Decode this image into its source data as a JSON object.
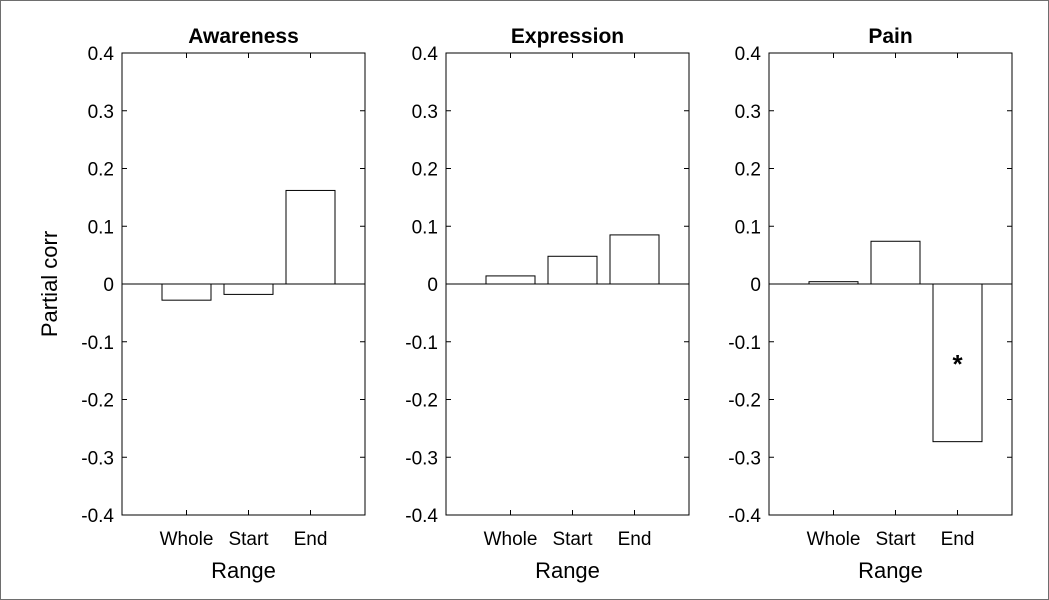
{
  "chart_data": [
    {
      "type": "bar",
      "title": "Awareness",
      "xlabel": "Range",
      "ylabel": "Partial corr",
      "categories": [
        "Whole",
        "Start",
        "End"
      ],
      "values": [
        -0.028,
        -0.018,
        0.162
      ],
      "ylim": [
        -0.4,
        0.4
      ],
      "yticks": [
        "0.4",
        "0.3",
        "0.2",
        "0.1",
        "0",
        "-0.1",
        "-0.2",
        "-0.3",
        "-0.4"
      ],
      "annotations": []
    },
    {
      "type": "bar",
      "title": "Expression",
      "xlabel": "Range",
      "ylabel": "",
      "categories": [
        "Whole",
        "Start",
        "End"
      ],
      "values": [
        0.014,
        0.048,
        0.085
      ],
      "ylim": [
        -0.4,
        0.4
      ],
      "yticks": [
        "0.4",
        "0.3",
        "0.2",
        "0.1",
        "0",
        "-0.1",
        "-0.2",
        "-0.3",
        "-0.4"
      ],
      "annotations": []
    },
    {
      "type": "bar",
      "title": "Pain",
      "xlabel": "Range",
      "ylabel": "",
      "categories": [
        "Whole",
        "Start",
        "End"
      ],
      "values": [
        0.004,
        0.074,
        -0.273
      ],
      "ylim": [
        -0.4,
        0.4
      ],
      "yticks": [
        "0.4",
        "0.3",
        "0.2",
        "0.1",
        "0",
        "-0.1",
        "-0.2",
        "-0.3",
        "-0.4"
      ],
      "annotations": [
        {
          "category": "End",
          "text": "*",
          "value": -0.13
        }
      ]
    }
  ],
  "colors": {
    "bar_fill": "#ffffff",
    "bar_stroke": "#000000",
    "axis": "#000000",
    "baseline": "#000000"
  }
}
